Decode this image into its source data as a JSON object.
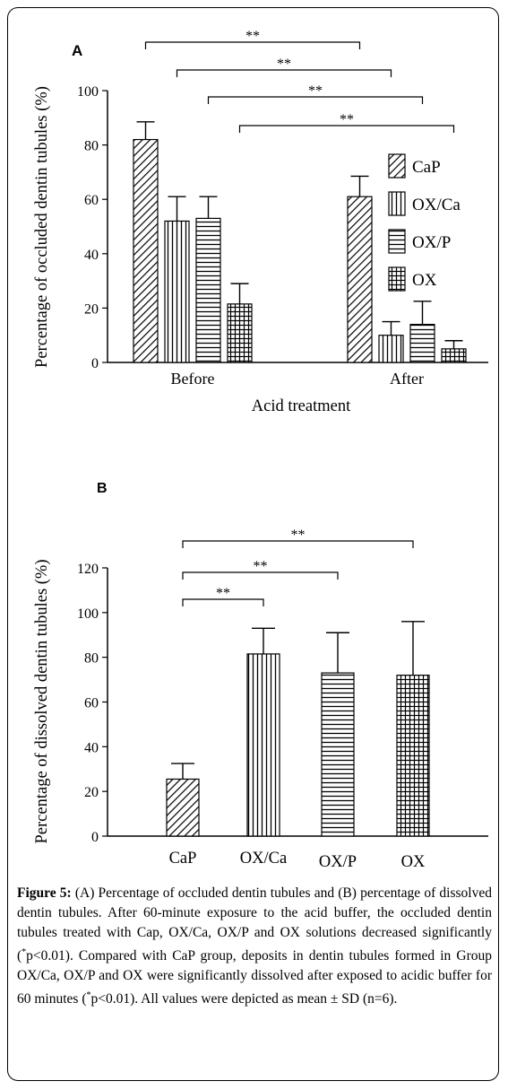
{
  "caption": {
    "label": "Figure 5:",
    "text_1": " (A) Percentage of occluded dentin tubules and (B) percentage of dissolved dentin tubules. After 60-minute exposure to the acid buffer, the occluded dentin tubules treated with Cap, OX/Ca, OX/P and OX solutions decreased significantly (",
    "sup_1": "*",
    "text_2": "p<0.01). Compared with CaP group, deposits in dentin tubules formed in Group OX/Ca, OX/P and OX were significantly dissolved after exposed to acidic buffer for 60 minutes (",
    "sup_2": "*",
    "text_3": "p<0.01). All values were depicted as mean ± SD (n=6)."
  },
  "chart_data": [
    {
      "type": "bar",
      "panel_label": "A",
      "categories": [
        "Before",
        "After"
      ],
      "series": [
        {
          "name": "CaP",
          "pattern": "diagonal",
          "values": [
            82,
            61
          ],
          "errors": [
            6.5,
            7.5
          ]
        },
        {
          "name": "OX/Ca",
          "pattern": "vertical",
          "values": [
            52,
            10
          ],
          "errors": [
            9,
            5
          ]
        },
        {
          "name": "OX/P",
          "pattern": "horizontal",
          "values": [
            53,
            14
          ],
          "errors": [
            8,
            8.5
          ]
        },
        {
          "name": "OX",
          "pattern": "grid",
          "values": [
            21.5,
            5
          ],
          "errors": [
            7.5,
            3
          ]
        }
      ],
      "xlabel": "Acid treatment",
      "ylabel": "Percentage of occluded dentin tubules (%)",
      "ylim": [
        0,
        100
      ],
      "yticks": [
        0,
        20,
        40,
        60,
        80,
        100
      ],
      "legend_position": "right",
      "significance": [
        {
          "from": "CaP",
          "to": "CaP",
          "label": "**"
        },
        {
          "from": "OX/Ca",
          "to": "OX/Ca",
          "label": "**"
        },
        {
          "from": "OX/P",
          "to": "OX/P",
          "label": "**"
        },
        {
          "from": "OX",
          "to": "OX",
          "label": "**"
        }
      ]
    },
    {
      "type": "bar",
      "panel_label": "B",
      "categories": [
        "CaP",
        "OX/Ca",
        "OX/P",
        "OX"
      ],
      "patterns": [
        "diagonal",
        "vertical",
        "horizontal",
        "grid"
      ],
      "values": [
        25.5,
        81.5,
        73,
        72
      ],
      "errors": [
        7,
        11.5,
        18,
        24
      ],
      "ylabel": "Percentage of dissolved dentin tubules (%)",
      "ylim": [
        0,
        120
      ],
      "yticks": [
        0,
        20,
        40,
        60,
        80,
        100,
        120
      ],
      "significance": [
        {
          "from": "CaP",
          "to": "OX/Ca",
          "label": "**"
        },
        {
          "from": "CaP",
          "to": "OX/P",
          "label": "**"
        },
        {
          "from": "CaP",
          "to": "OX",
          "label": "**"
        }
      ]
    }
  ]
}
